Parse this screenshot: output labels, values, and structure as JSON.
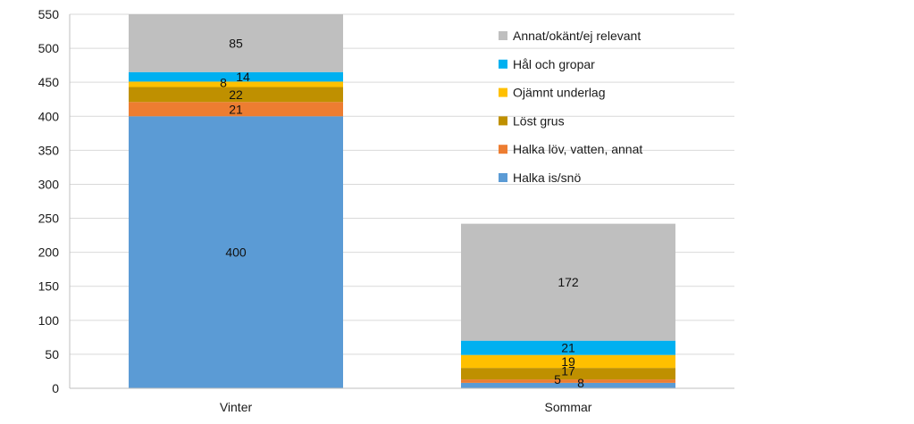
{
  "chart_data": {
    "type": "bar",
    "stacked": true,
    "categories": [
      "Vinter",
      "Sommar"
    ],
    "ylim": [
      0,
      550
    ],
    "yticks": [
      0,
      50,
      100,
      150,
      200,
      250,
      300,
      350,
      400,
      450,
      500,
      550
    ],
    "grid": true,
    "legend_position": "top-right",
    "series": [
      {
        "name": "Halka is/snö",
        "color": "#5B9BD5",
        "values": [
          400,
          8
        ]
      },
      {
        "name": "Halka löv, vatten, annat",
        "color": "#ED7D31",
        "values": [
          21,
          5
        ]
      },
      {
        "name": "Löst grus",
        "color": "#BF9000",
        "values": [
          22,
          17
        ]
      },
      {
        "name": "Ojämnt underlag",
        "color": "#FFC000",
        "values": [
          8,
          19
        ]
      },
      {
        "name": "Hål och gropar",
        "color": "#00B0F0",
        "values": [
          14,
          21
        ]
      },
      {
        "name": "Annat/okänt/ej relevant",
        "color": "#BFBFBF",
        "values": [
          85,
          172
        ]
      }
    ]
  }
}
